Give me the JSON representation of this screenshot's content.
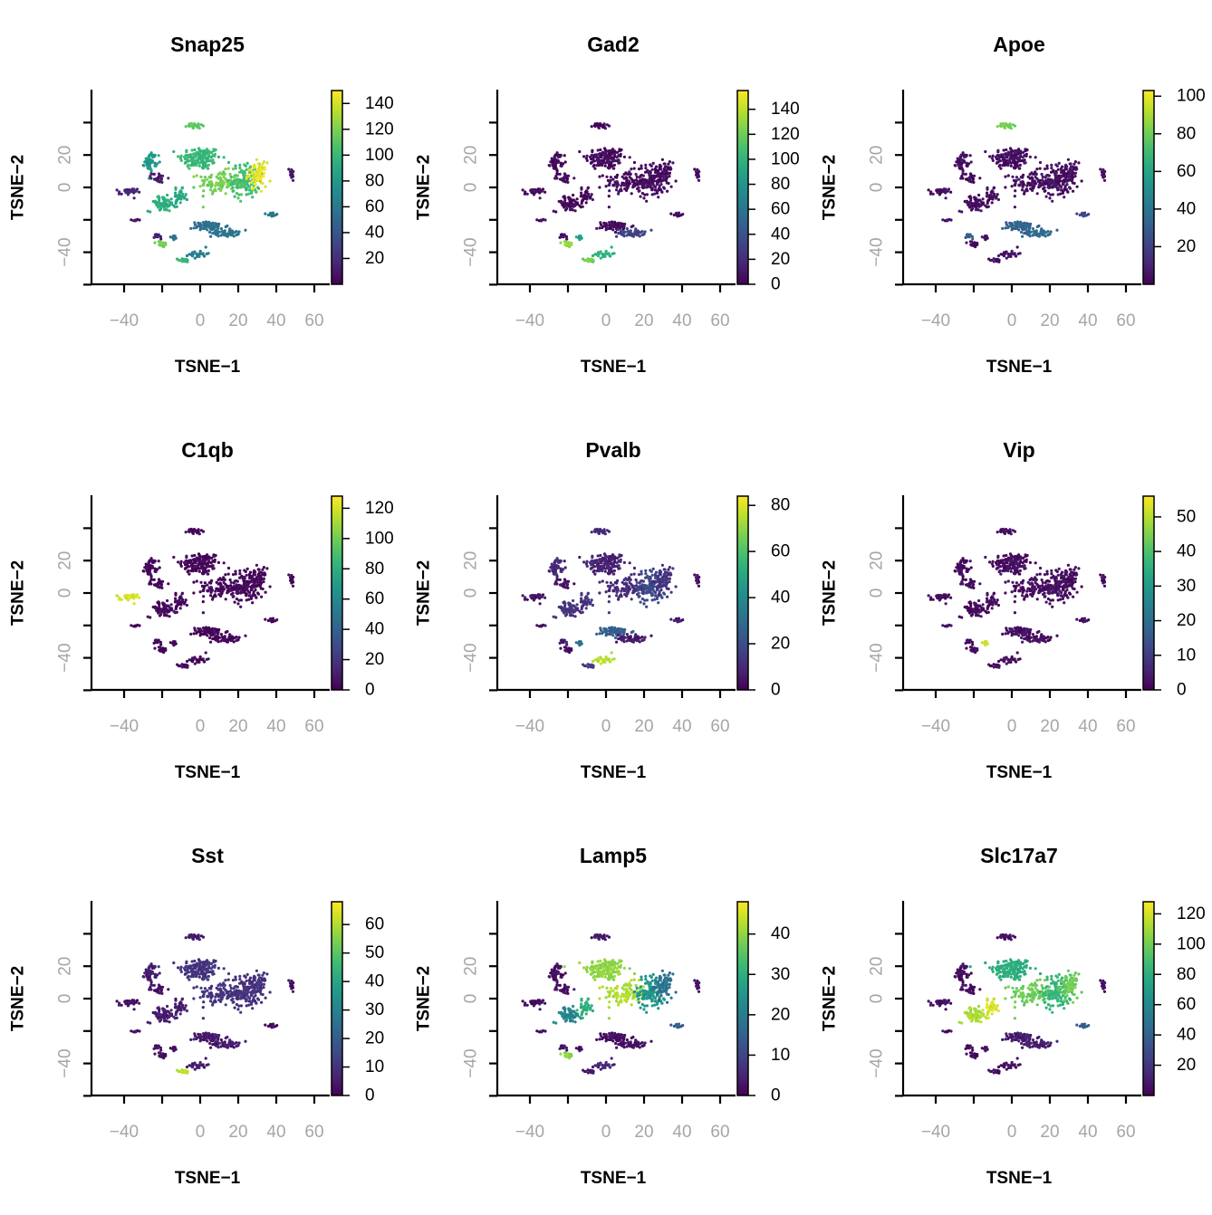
{
  "chart_data": [
    {
      "type": "scatter",
      "title": "Snap25",
      "xlabel": "TSNE−1",
      "ylabel": "TSNE−2",
      "color_range": [
        0,
        150
      ],
      "colorbar_ticks": [
        "20",
        "40",
        "60",
        "80",
        "100",
        "120",
        "140"
      ],
      "cluster_values": {
        "A": 100,
        "B": 118,
        "C": 104,
        "D": 145,
        "E": 55,
        "F": 58,
        "G": 80,
        "H": 12,
        "I": 15,
        "J": 95,
        "K": 90,
        "L": 112,
        "M": 118,
        "N": 10,
        "O": 58,
        "P": 12,
        "Q": 8,
        "R": 62,
        "S": 100,
        "T": 55
      }
    },
    {
      "type": "scatter",
      "title": "Gad2",
      "xlabel": "TSNE−1",
      "ylabel": "TSNE−2",
      "color_range": [
        0,
        155
      ],
      "colorbar_ticks": [
        "0",
        "20",
        "40",
        "60",
        "80",
        "100",
        "120",
        "140"
      ],
      "cluster_values": {
        "A": 5,
        "B": 5,
        "C": 5,
        "D": 5,
        "E": 5,
        "F": 30,
        "G": 4,
        "H": 4,
        "I": 4,
        "J": 5,
        "K": 5,
        "L": 5,
        "M": 130,
        "N": 4,
        "O": 5,
        "P": 5,
        "Q": 5,
        "R": 100,
        "S": 120,
        "T": 90
      }
    },
    {
      "type": "scatter",
      "title": "Apoe",
      "xlabel": "TSNE−1",
      "ylabel": "TSNE−2",
      "color_range": [
        0,
        103
      ],
      "colorbar_ticks": [
        "20",
        "40",
        "60",
        "80",
        "100"
      ],
      "cluster_values": {
        "A": 4,
        "B": 4,
        "C": 4,
        "D": 4,
        "E": 32,
        "F": 35,
        "G": 4,
        "H": 4,
        "I": 4,
        "J": 4,
        "K": 4,
        "L": 80,
        "M": 5,
        "N": 5,
        "O": 22,
        "P": 30,
        "Q": 4,
        "R": 4,
        "S": 5,
        "T": 4
      }
    },
    {
      "type": "scatter",
      "title": "C1qb",
      "xlabel": "TSNE−1",
      "ylabel": "TSNE−2",
      "color_range": [
        0,
        128
      ],
      "colorbar_ticks": [
        "0",
        "20",
        "40",
        "60",
        "80",
        "100",
        "120"
      ],
      "cluster_values": {
        "A": 2,
        "B": 2,
        "C": 2,
        "D": 2,
        "E": 2,
        "F": 2,
        "G": 2,
        "H": 2,
        "I": 120,
        "J": 2,
        "K": 2,
        "L": 2,
        "M": 2,
        "N": 2,
        "O": 2,
        "P": 2,
        "Q": 2,
        "R": 2,
        "S": 2,
        "T": 2
      }
    },
    {
      "type": "scatter",
      "title": "Pvalb",
      "xlabel": "TSNE−1",
      "ylabel": "TSNE−2",
      "color_range": [
        0,
        84
      ],
      "colorbar_ticks": [
        "0",
        "20",
        "40",
        "60",
        "80"
      ],
      "cluster_values": {
        "A": 8,
        "B": 10,
        "C": 18,
        "D": 12,
        "E": 25,
        "F": 6,
        "G": 10,
        "H": 4,
        "I": 4,
        "J": 12,
        "K": 12,
        "L": 10,
        "M": 4,
        "N": 4,
        "O": 6,
        "P": 6,
        "Q": 4,
        "R": 75,
        "S": 15,
        "T": 30
      }
    },
    {
      "type": "scatter",
      "title": "Vip",
      "xlabel": "TSNE−1",
      "ylabel": "TSNE−2",
      "color_range": [
        0,
        56
      ],
      "colorbar_ticks": [
        "0",
        "10",
        "20",
        "30",
        "40",
        "50"
      ],
      "cluster_values": {
        "A": 2,
        "B": 2,
        "C": 2,
        "D": 2,
        "E": 2,
        "F": 2,
        "G": 2,
        "H": 2,
        "I": 2,
        "J": 2,
        "K": 2,
        "L": 2,
        "M": 2,
        "N": 2,
        "O": 2,
        "P": 2,
        "Q": 2,
        "R": 2,
        "S": 2,
        "T": 52
      }
    },
    {
      "type": "scatter",
      "title": "Sst",
      "xlabel": "TSNE−1",
      "ylabel": "TSNE−2",
      "color_range": [
        0,
        68
      ],
      "colorbar_ticks": [
        "0",
        "10",
        "20",
        "30",
        "40",
        "50",
        "60"
      ],
      "cluster_values": {
        "A": 10,
        "B": 10,
        "C": 10,
        "D": 10,
        "E": 5,
        "F": 5,
        "G": 5,
        "H": 3,
        "I": 3,
        "J": 5,
        "K": 5,
        "L": 5,
        "M": 3,
        "N": 3,
        "O": 3,
        "P": 3,
        "Q": 3,
        "R": 5,
        "S": 62,
        "T": 3
      }
    },
    {
      "type": "scatter",
      "title": "Lamp5",
      "xlabel": "TSNE−1",
      "ylabel": "TSNE−2",
      "color_range": [
        0,
        48
      ],
      "colorbar_ticks": [
        "0",
        "10",
        "20",
        "30",
        "40"
      ],
      "cluster_values": {
        "A": 40,
        "B": 42,
        "C": 25,
        "D": 18,
        "E": 2,
        "F": 2,
        "G": 2,
        "H": 2,
        "I": 2,
        "J": 22,
        "K": 30,
        "L": 3,
        "M": 40,
        "N": 2,
        "O": 14,
        "P": 3,
        "Q": 2,
        "R": 5,
        "S": 3,
        "T": 3
      }
    },
    {
      "type": "scatter",
      "title": "Slc17a7",
      "xlabel": "TSNE−1",
      "ylabel": "TSNE−2",
      "color_range": [
        0,
        128
      ],
      "colorbar_ticks": [
        "20",
        "40",
        "60",
        "80",
        "100",
        "120"
      ],
      "cluster_values": {
        "A": 80,
        "B": 100,
        "C": 85,
        "D": 100,
        "E": 10,
        "F": 10,
        "G": 5,
        "H": 5,
        "I": 5,
        "J": 112,
        "K": 120,
        "L": 5,
        "M": 5,
        "N": 3,
        "O": 35,
        "P": 5,
        "Q": 5,
        "R": 5,
        "S": 5,
        "T": 5
      }
    }
  ]
}
